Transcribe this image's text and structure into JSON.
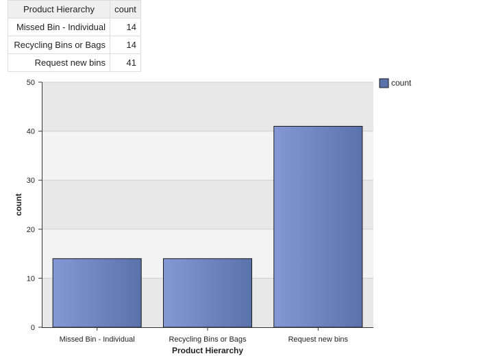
{
  "table": {
    "headers": [
      "Product Hierarchy",
      "count"
    ],
    "rows": [
      [
        "Missed Bin - Individual",
        "14"
      ],
      [
        "Recycling Bins or Bags",
        "14"
      ],
      [
        "Request new bins",
        "41"
      ]
    ]
  },
  "chart_data": {
    "type": "bar",
    "categories": [
      "Missed Bin - Individual",
      "Recycling Bins or Bags",
      "Request new bins"
    ],
    "series": [
      {
        "name": "count",
        "values": [
          14,
          14,
          41
        ]
      }
    ],
    "xlabel": "Product Hierarchy",
    "ylabel": "count",
    "ylim": [
      0,
      50
    ],
    "yticks": [
      0,
      10,
      20,
      30,
      40,
      50
    ],
    "grid": true,
    "legend": "top-right",
    "colors": {
      "bar_light": "#8598d6",
      "bar_dark": "#5a72ab",
      "bar_border": "#1a1a1a",
      "band_a": "#e8e8e8",
      "band_b": "#f3f3f3"
    }
  }
}
